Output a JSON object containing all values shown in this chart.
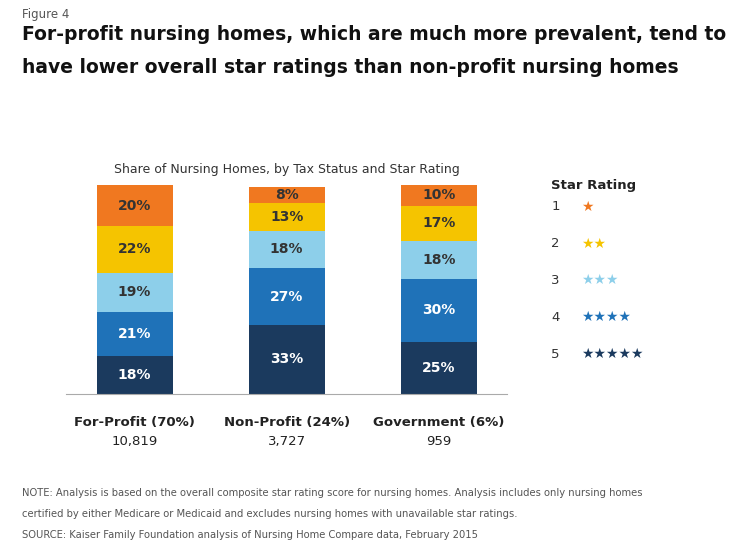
{
  "figure_label": "Figure 4",
  "title_line1": "For-profit nursing homes, which are much more prevalent, tend to",
  "title_line2": "have lower overall star ratings than non-profit nursing homes",
  "subtitle": "Share of Nursing Homes, by Tax Status and Star Rating",
  "category_labels_bold": [
    "For-Profit (70%)",
    "Non-Profit (24%)",
    "Government (6%)"
  ],
  "category_labels_normal": [
    "10,819",
    "3,727",
    "959"
  ],
  "segments": {
    "star1": [
      18,
      33,
      25
    ],
    "star2": [
      21,
      27,
      30
    ],
    "star3": [
      19,
      18,
      18
    ],
    "star4": [
      22,
      13,
      17
    ],
    "star5": [
      20,
      8,
      10
    ]
  },
  "colors": {
    "star1": "#1b3a5e",
    "star2": "#1f72b8",
    "star3": "#8dcfea",
    "star4": "#f5c400",
    "star5": "#f07820"
  },
  "text_colors": {
    "star1": "white",
    "star2": "white",
    "star3": "#333333",
    "star4": "#333333",
    "star5": "#333333"
  },
  "star_colors": {
    "1": "#f07820",
    "2": "#f5c400",
    "3": "#8dcfea",
    "4": "#1f72b8",
    "5": "#1b3a5e"
  },
  "note_line1": "NOTE: Analysis is based on the overall composite star rating score for nursing homes. Analysis includes only nursing homes",
  "note_line2": "certified by either Medicare or Medicaid and excludes nursing homes with unavailable star ratings.",
  "note_line3": "SOURCE: Kaiser Family Foundation analysis of Nursing Home Compare data, February 2015",
  "background_color": "#ffffff",
  "bar_width": 0.5
}
